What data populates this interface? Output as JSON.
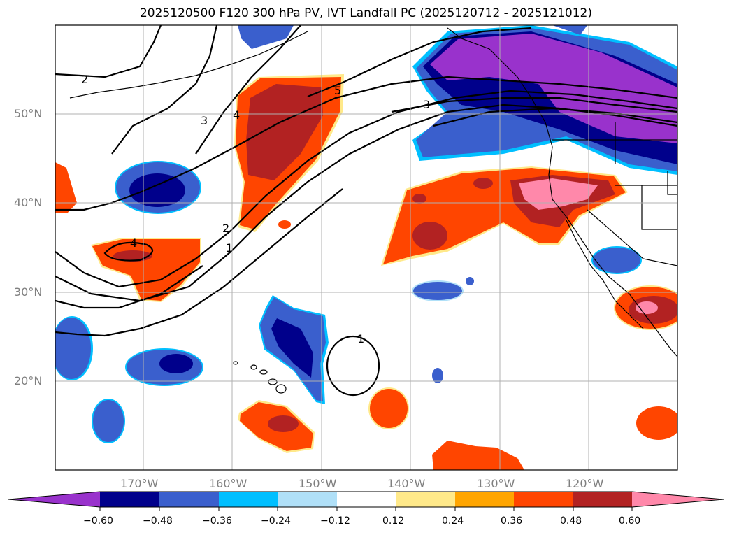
{
  "title": "2025120500 F120 300 hPa PV, IVT Landfall PC (2025120712 - 2025121012)",
  "lat_labels": [
    "50°N",
    "40°N",
    "30°N",
    "20°N"
  ],
  "lon_labels": [
    "170°W",
    "160°W",
    "150°W",
    "140°W",
    "130°W",
    "120°W"
  ],
  "contour_labels": [
    "2",
    "3",
    "4",
    "5",
    "3",
    "4",
    "2",
    "1",
    "1"
  ],
  "colorbar": {
    "tick_labels": [
      "−0.60",
      "−0.48",
      "−0.36",
      "−0.24",
      "−0.12",
      "0.12",
      "0.24",
      "0.36",
      "0.48",
      "0.60"
    ],
    "colors": [
      "#9932cc",
      "#00008b",
      "#3a5fcd",
      "#00bfff",
      "#b0e0f8",
      "#ffffff",
      "#ffe98a",
      "#ffa500",
      "#ff4500",
      "#b22222",
      "#ff88aa"
    ]
  },
  "colors": {
    "purple": "#9932cc",
    "navy": "#00008b",
    "blue": "#3a5fcd",
    "cyan": "#00bfff",
    "light_blue": "#b0e0f8",
    "light_yellow": "#ffe98a",
    "orange": "#ffa500",
    "orange_red": "#ff4500",
    "firebrick": "#b22222",
    "pink": "#ff88aa"
  }
}
